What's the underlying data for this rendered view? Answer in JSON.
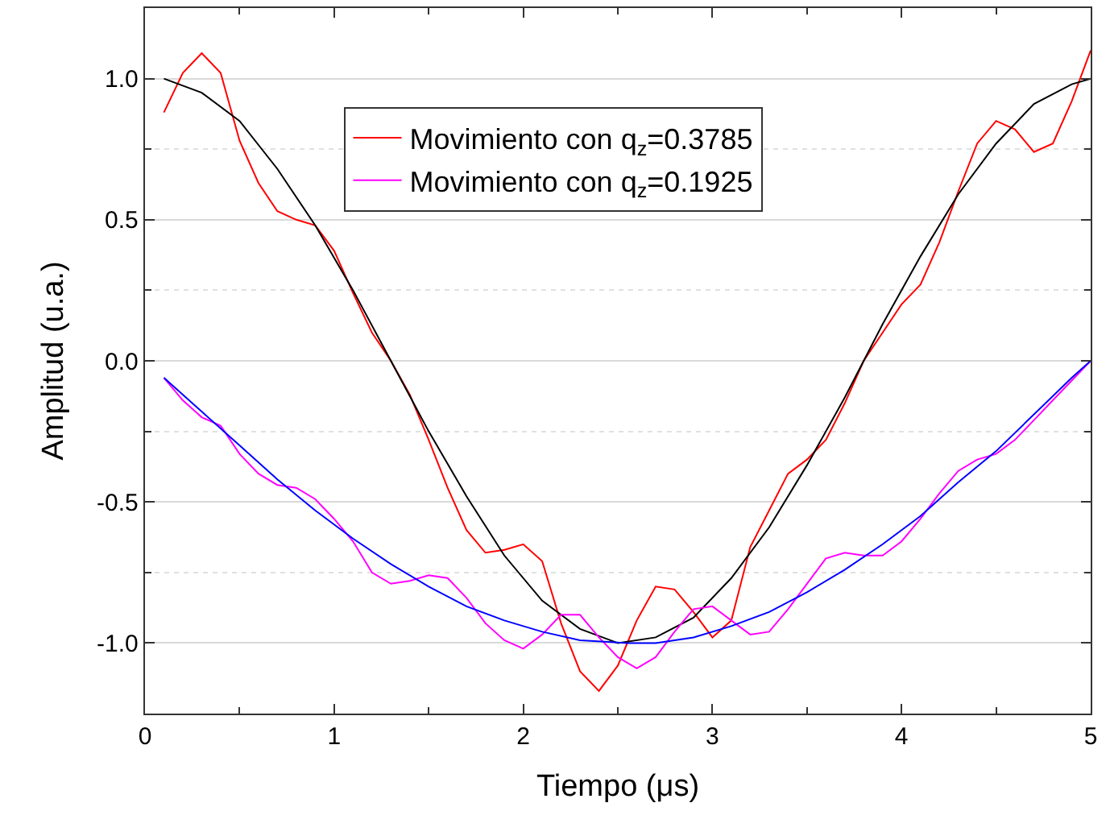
{
  "chart_data": {
    "type": "line",
    "xlabel": "Tiempo (μs)",
    "ylabel": "Amplitud (u.a.)",
    "xlim": [
      0,
      5
    ],
    "ylim": [
      -1.25,
      1.25
    ],
    "xticks": [
      0,
      {
        "value": 0.5,
        "label": null
      },
      1,
      {
        "value": 1.5,
        "label": null
      },
      2,
      {
        "value": 2.5,
        "label": null
      },
      3,
      {
        "value": 3.5,
        "label": null
      },
      4,
      {
        "value": 4.5,
        "label": null
      },
      5
    ],
    "yticks": [
      {
        "value": -1.0,
        "label": "-1.0"
      },
      {
        "value": -0.75,
        "label": null
      },
      {
        "value": -0.5,
        "label": "-0.5"
      },
      {
        "value": -0.25,
        "label": null
      },
      {
        "value": 0.0,
        "label": "0.0"
      },
      {
        "value": 0.25,
        "label": null
      },
      {
        "value": 0.5,
        "label": "0.5"
      },
      {
        "value": 0.75,
        "label": null
      },
      {
        "value": 1.0,
        "label": "1.0"
      }
    ],
    "grid": "y",
    "legend": "top",
    "marker": "none",
    "line_style": "solid",
    "series": [
      {
        "name": "Movimiento con q$_{z}$=0.3785",
        "color": "#ff0000",
        "x": [
          0.1,
          0.2,
          0.3,
          0.4,
          0.5,
          0.6,
          0.7,
          0.8,
          0.9,
          1.0,
          1.1,
          1.2,
          1.3,
          1.4,
          1.5,
          1.6,
          1.7,
          1.8,
          1.9,
          2.0,
          2.1,
          2.2,
          2.3,
          2.4,
          2.5,
          2.6,
          2.7,
          2.8,
          2.9,
          3.0,
          3.1,
          3.2,
          3.3,
          3.4,
          3.5,
          3.6,
          3.7,
          3.8,
          3.9,
          4.0,
          4.1,
          4.2,
          4.3,
          4.4,
          4.5,
          4.6,
          4.7,
          4.8,
          4.9,
          5.0
        ],
        "values": [
          0.88,
          1.02,
          1.09,
          1.02,
          0.78,
          0.63,
          0.53,
          0.5,
          0.48,
          0.39,
          0.24,
          0.1,
          0.0,
          -0.12,
          -0.28,
          -0.45,
          -0.6,
          -0.68,
          -0.67,
          -0.65,
          -0.71,
          -0.93,
          -1.1,
          -1.17,
          -1.08,
          -0.92,
          -0.8,
          -0.81,
          -0.89,
          -0.98,
          -0.92,
          -0.66,
          -0.53,
          -0.4,
          -0.35,
          -0.28,
          -0.15,
          0.0,
          0.1,
          0.2,
          0.27,
          0.42,
          0.6,
          0.77,
          0.85,
          0.82,
          0.74,
          0.77,
          0.92,
          1.1
        ]
      },
      {
        "color": "#000000",
        "x": [
          0.1,
          0.3,
          0.5,
          0.7,
          0.9,
          1.1,
          1.3,
          1.5,
          1.7,
          1.9,
          2.1,
          2.3,
          2.5,
          2.7,
          2.9,
          3.1,
          3.3,
          3.5,
          3.7,
          3.9,
          4.1,
          4.3,
          4.5,
          4.7,
          4.9,
          5.0
        ],
        "values": [
          1.0,
          0.95,
          0.85,
          0.68,
          0.48,
          0.25,
          0.0,
          -0.25,
          -0.48,
          -0.69,
          -0.85,
          -0.95,
          -1.0,
          -0.98,
          -0.91,
          -0.77,
          -0.59,
          -0.37,
          -0.13,
          0.13,
          0.37,
          0.59,
          0.77,
          0.91,
          0.98,
          1.0
        ]
      },
      {
        "name": "Movimiento con q$_{z}$=0.1925",
        "color": "#ff00ff",
        "x": [
          0.1,
          0.2,
          0.3,
          0.4,
          0.5,
          0.6,
          0.7,
          0.8,
          0.9,
          1.0,
          1.1,
          1.2,
          1.3,
          1.4,
          1.5,
          1.6,
          1.7,
          1.8,
          1.9,
          2.0,
          2.1,
          2.2,
          2.3,
          2.4,
          2.5,
          2.6,
          2.7,
          2.8,
          2.9,
          3.0,
          3.1,
          3.2,
          3.3,
          3.4,
          3.5,
          3.6,
          3.7,
          3.8,
          3.9,
          4.0,
          4.1,
          4.2,
          4.3,
          4.4,
          4.5,
          4.6,
          4.7,
          4.8,
          4.9,
          5.0
        ],
        "values": [
          -0.06,
          -0.14,
          -0.2,
          -0.23,
          -0.33,
          -0.4,
          -0.44,
          -0.45,
          -0.49,
          -0.56,
          -0.64,
          -0.75,
          -0.79,
          -0.78,
          -0.76,
          -0.77,
          -0.84,
          -0.93,
          -0.99,
          -1.02,
          -0.97,
          -0.9,
          -0.9,
          -0.98,
          -1.05,
          -1.09,
          -1.05,
          -0.96,
          -0.88,
          -0.87,
          -0.92,
          -0.97,
          -0.96,
          -0.88,
          -0.79,
          -0.7,
          -0.68,
          -0.69,
          -0.69,
          -0.64,
          -0.56,
          -0.47,
          -0.39,
          -0.35,
          -0.33,
          -0.28,
          -0.21,
          -0.14,
          -0.07,
          0.0
        ]
      },
      {
        "color": "#0000ff",
        "x": [
          0.1,
          0.3,
          0.5,
          0.7,
          0.9,
          1.1,
          1.3,
          1.5,
          1.7,
          1.9,
          2.1,
          2.3,
          2.55,
          2.7,
          2.9,
          3.1,
          3.3,
          3.5,
          3.7,
          3.9,
          4.1,
          4.3,
          4.5,
          4.7,
          4.9,
          5.0
        ],
        "values": [
          -0.06,
          -0.18,
          -0.3,
          -0.42,
          -0.53,
          -0.63,
          -0.72,
          -0.8,
          -0.87,
          -0.92,
          -0.96,
          -0.99,
          -1.0,
          -1.0,
          -0.98,
          -0.94,
          -0.89,
          -0.82,
          -0.74,
          -0.65,
          -0.55,
          -0.43,
          -0.32,
          -0.19,
          -0.06,
          0.0
        ]
      }
    ]
  }
}
